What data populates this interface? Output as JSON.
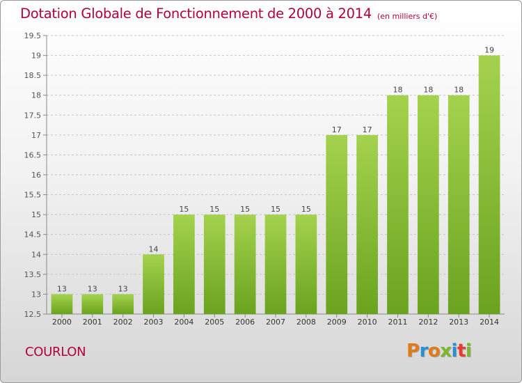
{
  "header": {
    "title": "Dotation Globale de Fonctionnement de 2000 à 2014",
    "unit_note": "(en milliers d'€)"
  },
  "footer": {
    "commune": "COURLON",
    "brand": "Proxiti",
    "brand_colors": [
      "#e07b1a",
      "#2a8fd0",
      "#e07b1a",
      "#7cb62b",
      "#2a8fd0",
      "#e63b2e",
      "#7cb62b"
    ]
  },
  "chart_data": {
    "type": "bar",
    "title": "Dotation Globale de Fonctionnement de 2000 à 2014",
    "subtitle": "(en milliers d'€)",
    "categories": [
      "2000",
      "2001",
      "2002",
      "2003",
      "2004",
      "2005",
      "2006",
      "2007",
      "2008",
      "2009",
      "2010",
      "2011",
      "2012",
      "2013",
      "2014"
    ],
    "values": [
      13,
      13,
      13,
      14,
      15,
      15,
      15,
      15,
      15,
      17,
      17,
      18,
      18,
      18,
      19
    ],
    "data_labels": [
      "13",
      "13",
      "13",
      "14",
      "15",
      "15",
      "15",
      "15",
      "15",
      "17",
      "17",
      "18",
      "18",
      "18",
      "19"
    ],
    "ylim": [
      12.5,
      19.5
    ],
    "yticks": [
      12.5,
      13,
      13.5,
      14,
      14.5,
      15,
      15.5,
      16,
      16.5,
      17,
      17.5,
      18,
      18.5,
      19,
      19.5
    ],
    "ytick_labels": [
      "12.5",
      "13",
      "13.5",
      "14",
      "14.5",
      "15",
      "15.5",
      "16",
      "16.5",
      "17",
      "17.5",
      "18",
      "18.5",
      "19",
      "19.5"
    ],
    "xlabel": "",
    "ylabel": "",
    "grid": "horizontal dashed",
    "bar_color": "#7ab52a",
    "bar_highlight": "#a4d24e"
  }
}
